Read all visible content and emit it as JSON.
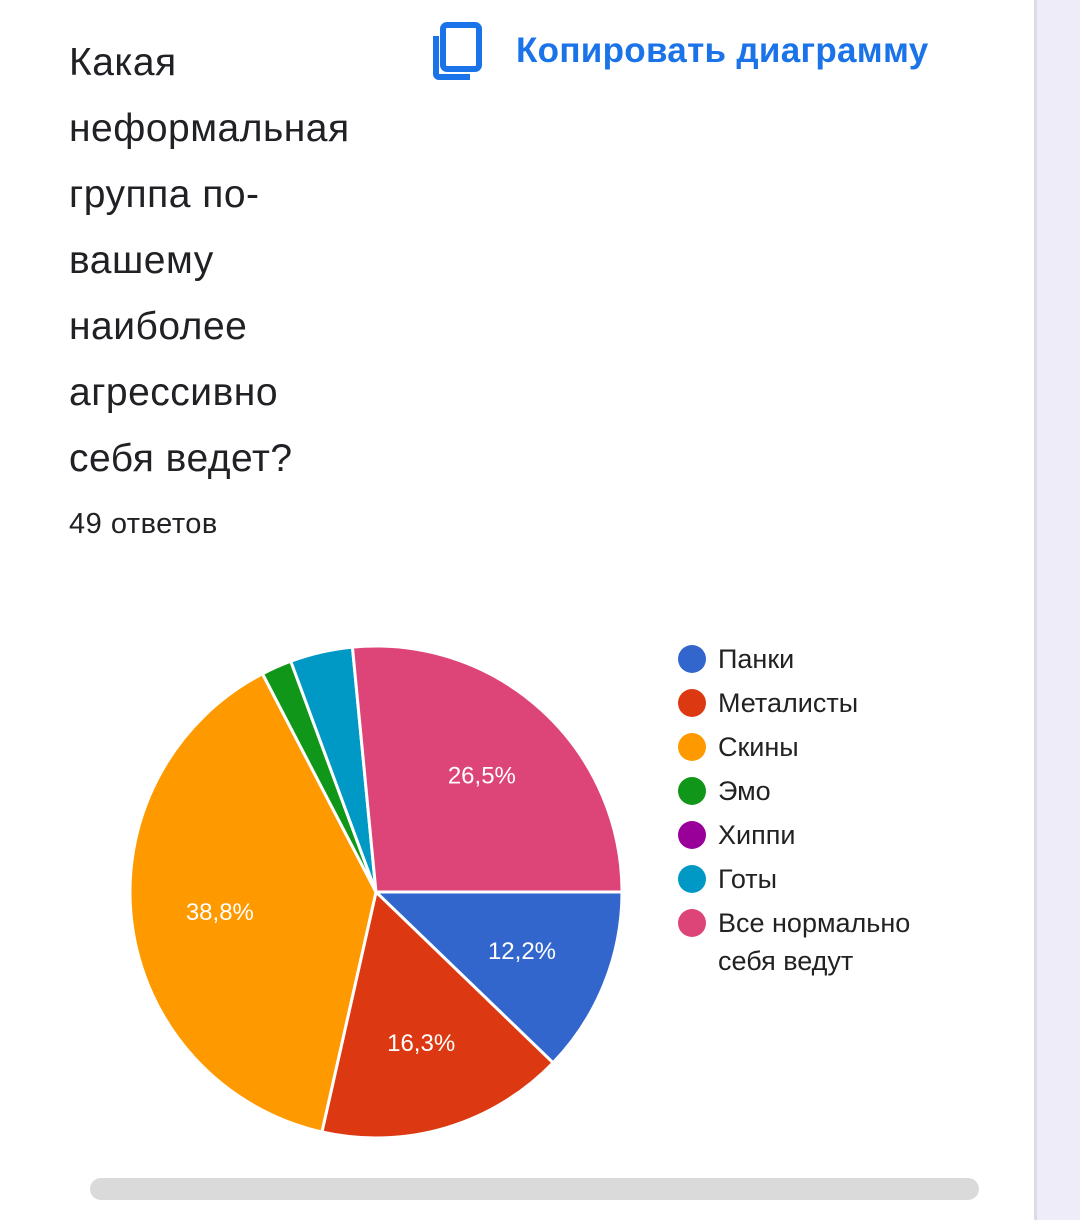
{
  "question": "Какая неформальная группа по-вашему наиболее агрессивно себя ведет?",
  "responses_count": "49 ответов",
  "copy_button": {
    "label": "Копировать диаграмму",
    "icon": "copy-icon",
    "color": "#1a73e8"
  },
  "chart_data": {
    "type": "pie",
    "legend_position": "right",
    "slices": [
      {
        "label": "Панки",
        "value": 12.2,
        "display": "12,2%",
        "color": "#3366cc"
      },
      {
        "label": "Металисты",
        "value": 16.3,
        "display": "16,3%",
        "color": "#dc3912"
      },
      {
        "label": "Скины",
        "value": 38.8,
        "display": "38,8%",
        "color": "#ff9900"
      },
      {
        "label": "Эмо",
        "value": 2.0,
        "display": "",
        "color": "#109618"
      },
      {
        "label": "Хиппи",
        "value": 0,
        "display": "",
        "color": "#990099"
      },
      {
        "label": "Готы",
        "value": 4.1,
        "display": "",
        "color": "#0099c6"
      },
      {
        "label": "Все нормально себя ведут",
        "value": 26.5,
        "display": "26,5%",
        "color": "#dd4477"
      }
    ]
  }
}
